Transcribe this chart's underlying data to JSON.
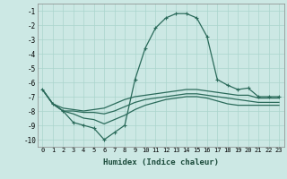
{
  "xlabel": "Humidex (Indice chaleur)",
  "bg_color": "#cce8e4",
  "grid_color": "#aad4cc",
  "line_color": "#2a6a5a",
  "xlim": [
    -0.5,
    23.5
  ],
  "ylim": [
    -10.5,
    -0.5
  ],
  "yticks": [
    -1,
    -2,
    -3,
    -4,
    -5,
    -6,
    -7,
    -8,
    -9,
    -10
  ],
  "xticks": [
    0,
    1,
    2,
    3,
    4,
    5,
    6,
    7,
    8,
    9,
    10,
    11,
    12,
    13,
    14,
    15,
    16,
    17,
    18,
    19,
    20,
    21,
    22,
    23
  ],
  "line1_x": [
    0,
    1,
    2,
    3,
    4,
    5,
    6,
    7,
    8,
    9,
    10,
    11,
    12,
    13,
    14,
    15,
    16,
    17,
    18,
    19,
    20,
    21,
    22,
    23
  ],
  "line1_y": [
    -6.5,
    -7.5,
    -8.0,
    -8.8,
    -9.0,
    -9.2,
    -10.0,
    -9.5,
    -9.0,
    -5.8,
    -3.6,
    -2.2,
    -1.5,
    -1.2,
    -1.2,
    -1.5,
    -2.8,
    -5.8,
    -6.2,
    -6.5,
    -6.4,
    -7.0,
    -7.0,
    -7.0
  ],
  "line2_x": [
    0,
    1,
    2,
    3,
    4,
    5,
    6,
    7,
    8,
    9,
    10,
    11,
    12,
    13,
    14,
    15,
    16,
    17,
    18,
    19,
    20,
    21,
    22,
    23
  ],
  "line2_y": [
    -6.5,
    -7.5,
    -7.8,
    -7.9,
    -8.0,
    -7.9,
    -7.8,
    -7.5,
    -7.2,
    -7.0,
    -6.9,
    -6.8,
    -6.7,
    -6.6,
    -6.5,
    -6.5,
    -6.6,
    -6.7,
    -6.8,
    -6.9,
    -6.9,
    -7.1,
    -7.1,
    -7.1
  ],
  "line3_x": [
    0,
    1,
    2,
    3,
    4,
    5,
    6,
    7,
    8,
    9,
    10,
    11,
    12,
    13,
    14,
    15,
    16,
    17,
    18,
    19,
    20,
    21,
    22,
    23
  ],
  "line3_y": [
    -6.5,
    -7.5,
    -8.0,
    -8.0,
    -8.1,
    -8.1,
    -8.2,
    -8.0,
    -7.7,
    -7.4,
    -7.2,
    -7.1,
    -7.0,
    -6.9,
    -6.8,
    -6.8,
    -6.9,
    -7.0,
    -7.1,
    -7.2,
    -7.3,
    -7.4,
    -7.4,
    -7.4
  ],
  "line4_x": [
    0,
    1,
    2,
    3,
    4,
    5,
    6,
    7,
    8,
    9,
    10,
    11,
    12,
    13,
    14,
    15,
    16,
    17,
    18,
    19,
    20,
    21,
    22,
    23
  ],
  "line4_y": [
    -6.5,
    -7.5,
    -8.0,
    -8.2,
    -8.5,
    -8.6,
    -8.9,
    -8.6,
    -8.3,
    -7.9,
    -7.6,
    -7.4,
    -7.2,
    -7.1,
    -7.0,
    -7.0,
    -7.1,
    -7.3,
    -7.5,
    -7.6,
    -7.6,
    -7.6,
    -7.6,
    -7.6
  ]
}
